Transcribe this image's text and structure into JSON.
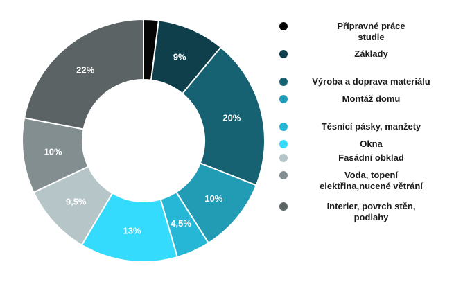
{
  "chart_data": {
    "type": "pie",
    "donut": true,
    "slices": [
      {
        "label": "Přípravné práce\nstudie",
        "value": 2,
        "value_label": "",
        "color": "#050505"
      },
      {
        "label": "Základy",
        "value": 9,
        "value_label": "9%",
        "color": "#0f3f4b"
      },
      {
        "label": "Výroba a doprava materiálu",
        "value": 20,
        "value_label": "20%",
        "color": "#176272"
      },
      {
        "label": "Montáž domu",
        "value": 10,
        "value_label": "10%",
        "color": "#229bb5"
      },
      {
        "label": "Těsnící pásky, manžety",
        "value": 4.5,
        "value_label": "4,5%",
        "color": "#26b6d6"
      },
      {
        "label": "Okna",
        "value": 13,
        "value_label": "13%",
        "color": "#34dbfc"
      },
      {
        "label": "Fasádní obklad",
        "value": 9.5,
        "value_label": "9,5%",
        "color": "#b6c5c8"
      },
      {
        "label": "Voda, topení\nelektřina,nucené větrání",
        "value": 10,
        "value_label": "10%",
        "color": "#838e91"
      },
      {
        "label": "Interier, povrch stěn,\npodlahy",
        "value": 22,
        "value_label": "22%",
        "color": "#5b6364"
      }
    ],
    "legend_position": "right"
  }
}
